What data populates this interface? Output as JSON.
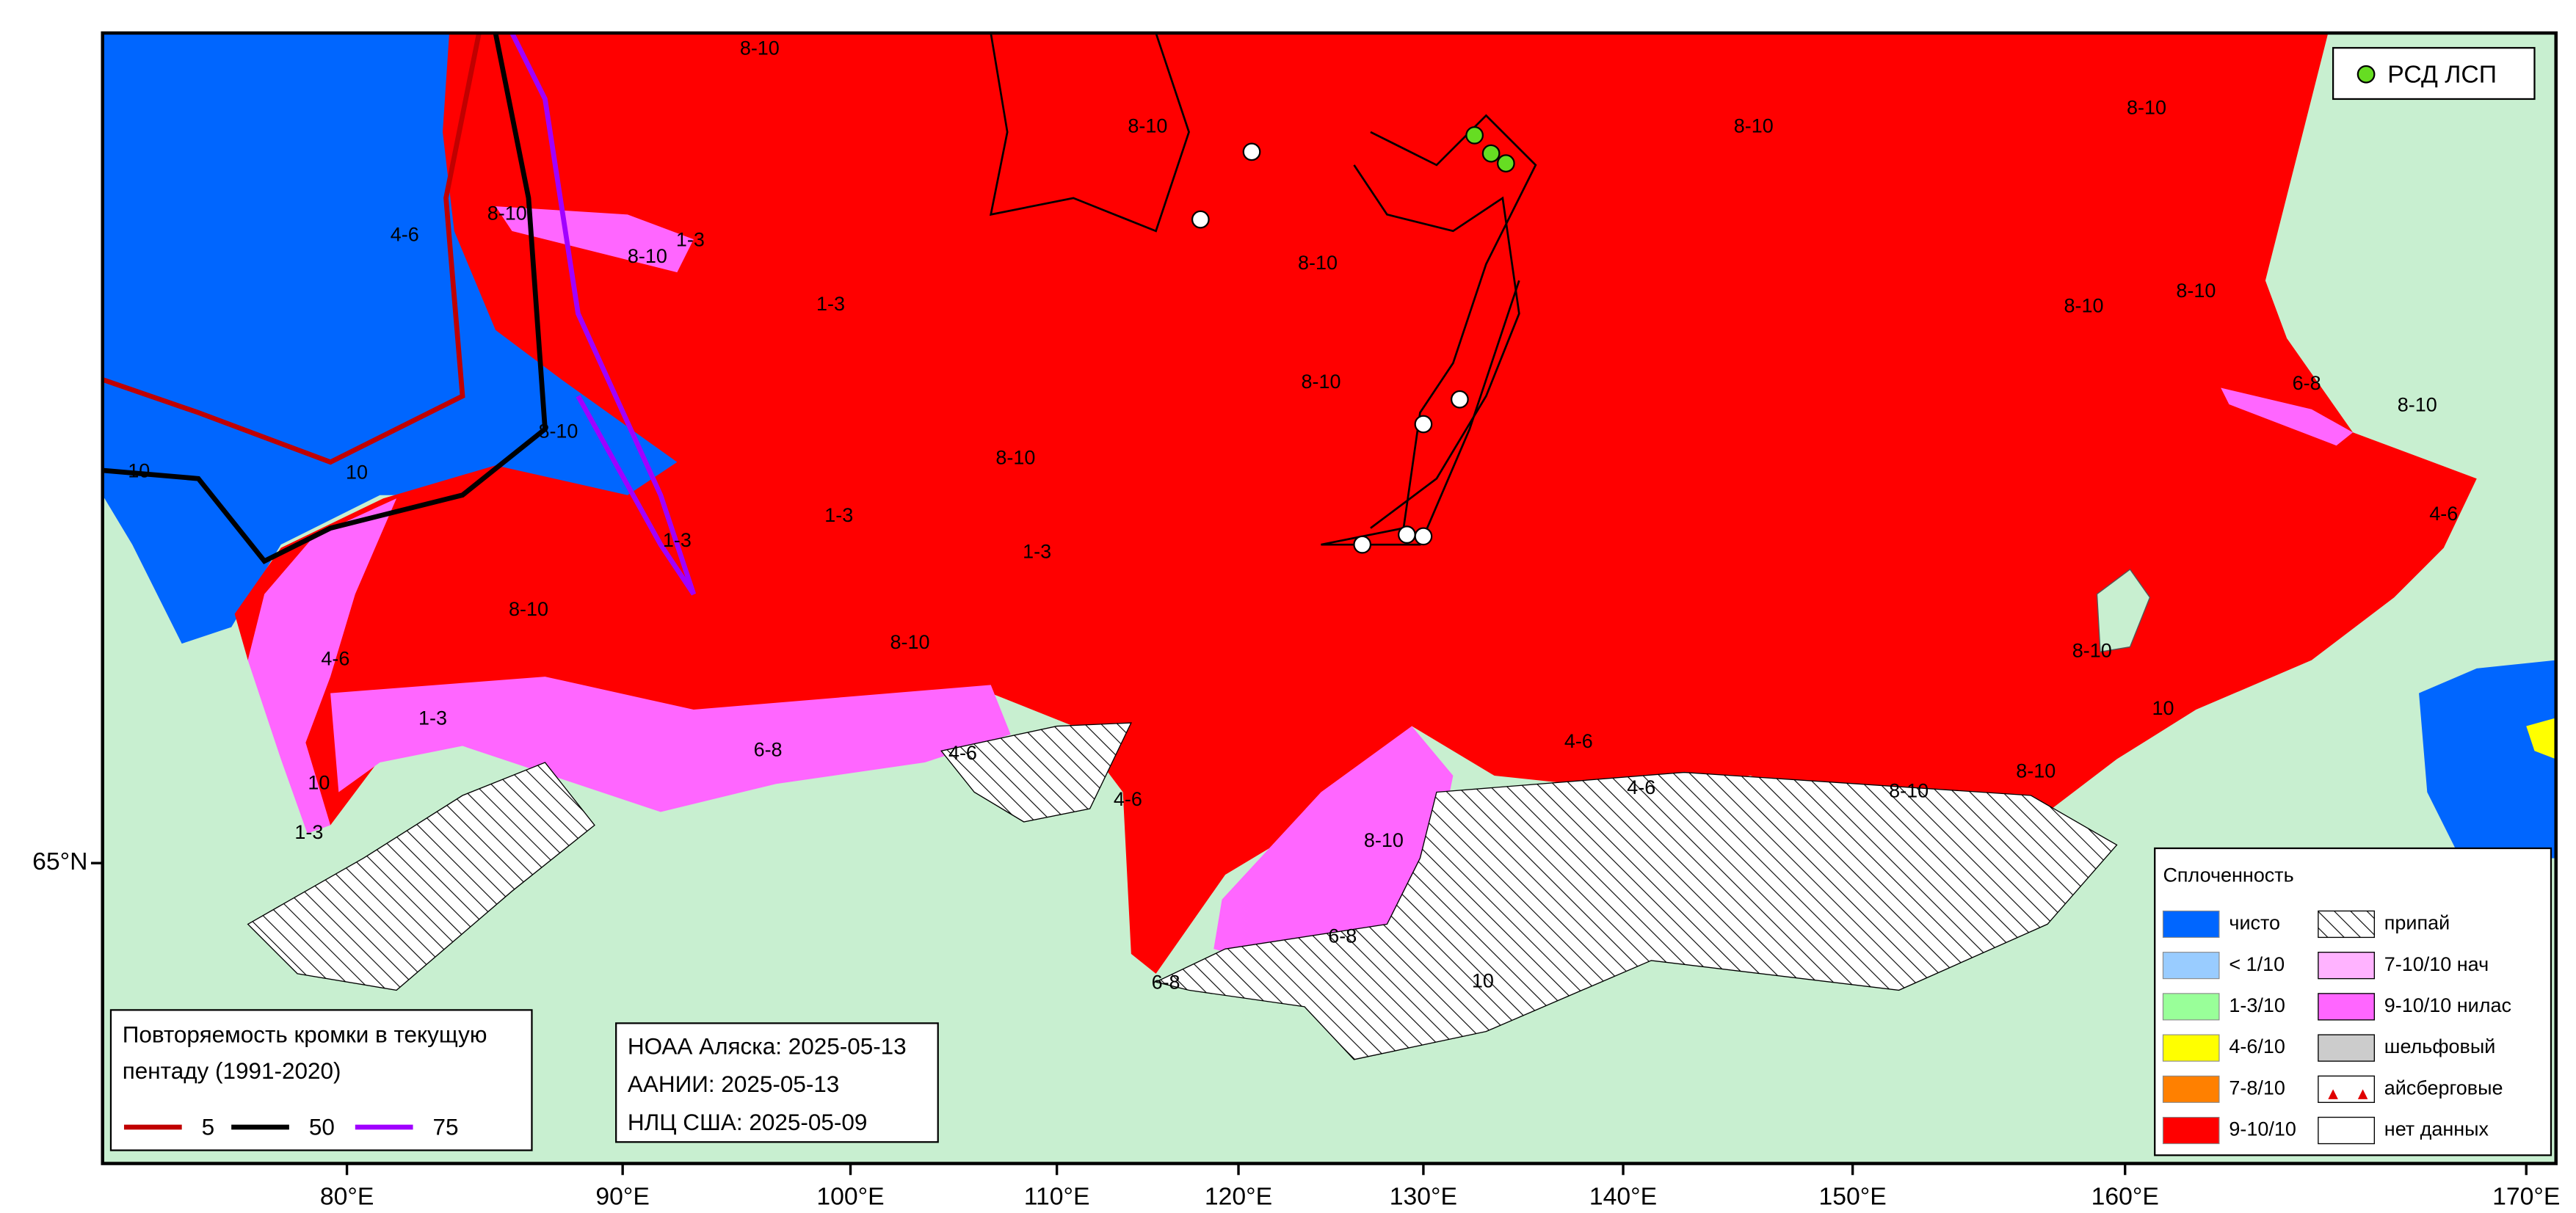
{
  "station_legend": {
    "label": "РСД ЛСП",
    "color": "#66dd22"
  },
  "axes": {
    "lon_labels": [
      "80°E",
      "90°E",
      "100°E",
      "110°E",
      "120°E",
      "130°E",
      "140°E",
      "150°E",
      "160°E",
      "170°E"
    ],
    "lat_labels": [
      "65°N"
    ]
  },
  "concentration_legend": {
    "title": "Сплоченность",
    "left": [
      {
        "label": "чисто",
        "color": "#0066ff"
      },
      {
        "label": "< 1/10",
        "color": "#99ccff"
      },
      {
        "label": "1-3/10",
        "color": "#99ff99"
      },
      {
        "label": "4-6/10",
        "color": "#ffff00"
      },
      {
        "label": "7-8/10",
        "color": "#ff8000"
      },
      {
        "label": "9-10/10",
        "color": "#ff0000"
      }
    ],
    "right": [
      {
        "label": "припай"
      },
      {
        "label": "7-10/10 нач",
        "color": "#ffb3ff"
      },
      {
        "label": "9-10/10 нилас",
        "color": "#ff66ff"
      },
      {
        "label": "шельфовый",
        "color": "#cccccc"
      },
      {
        "label": "айсберговые"
      },
      {
        "label": "нет данных",
        "color": "#ffffff"
      }
    ]
  },
  "edge_legend": {
    "title": [
      "Повторяемость кромки в текущую",
      "пентаду (1991-2020)"
    ],
    "items": [
      {
        "label": "5",
        "color": "#c00000"
      },
      {
        "label": "50",
        "color": "#000000"
      },
      {
        "label": "75",
        "color": "#a000ff"
      }
    ]
  },
  "sources": [
    "НОАА Аляска: 2025-05-13",
    "ААНИИ: 2025-05-13",
    "НЛЦ США: 2025-05-09"
  ],
  "ice_labels": [
    "8-10",
    "8-10",
    "8-10",
    "8-10",
    "8-10",
    "8-10",
    "8-10",
    "8-10",
    "8-10",
    "8-10",
    "8-10",
    "8-10",
    "8-10",
    "8-10",
    "1-3",
    "1-3",
    "1-3",
    "1-3",
    "1-3",
    "4-6",
    "4-6",
    "4-6",
    "4-6",
    "4-6",
    "4-6",
    "6-8",
    "6-8",
    "8-10",
    "10",
    "10",
    "10",
    "1-3",
    "6-8",
    "8-10",
    "8-10",
    "8-10",
    "8-10",
    "4-6",
    "10",
    "10",
    "6-8",
    "1-3"
  ]
}
